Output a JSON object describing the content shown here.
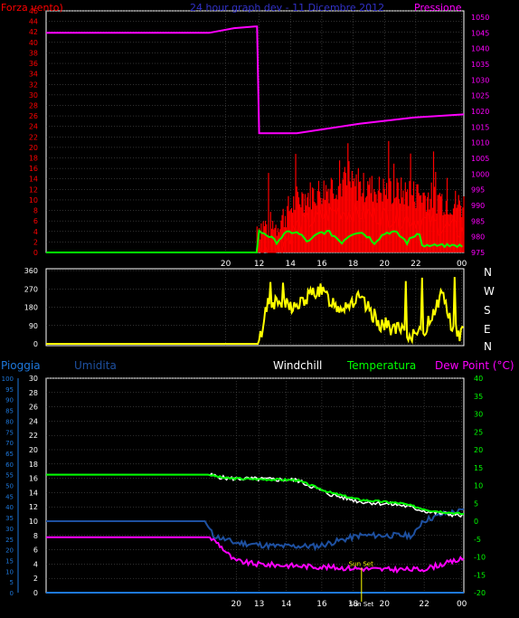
{
  "colors": {
    "wind": "#ff0000",
    "pressure": "#ff00ff",
    "temperature": "#00ff00",
    "dewpoint": "#ff00ff",
    "humidity": "#1e50a0",
    "windchill": "#ffffff",
    "rain": "#1e78dc",
    "direction": "#ffff00",
    "title": "#3232c8",
    "grid": "#606060",
    "axis": "#ffffff"
  },
  "panel1": {
    "wind_label": "Forza vento)",
    "title": "24 hour graph dev - 11 Dicembre 2012",
    "pressure_label": "Pressione",
    "left_ticks": [
      "46",
      "44",
      "42",
      "40",
      "38",
      "36",
      "34",
      "32",
      "30",
      "28",
      "26",
      "24",
      "22",
      "20",
      "18",
      "16",
      "14",
      "12",
      "10",
      "8",
      "6",
      "4",
      "2",
      "0"
    ],
    "right_ticks": [
      "1050",
      "1045",
      "1040",
      "1035",
      "1030",
      "1025",
      "1020",
      "1015",
      "1010",
      "1005",
      "1000",
      "995",
      "990",
      "985",
      "980",
      "975"
    ],
    "x_ticks": [
      "20",
      "12",
      "14",
      "16",
      "18",
      "20",
      "22",
      "00"
    ]
  },
  "panel2": {
    "left_ticks": [
      "360",
      "270",
      "180",
      "90",
      "0"
    ],
    "compass": [
      "N",
      "W",
      "S",
      "E",
      "N"
    ],
    "x_ticks": [
      "20",
      "12",
      "14",
      "16",
      "18",
      "20",
      "22",
      "00"
    ]
  },
  "panel3": {
    "labels": {
      "rain": "Pioggia",
      "humidity": "Umidita",
      "windchill": "Windchill",
      "temperature": "Temperatura",
      "dewpoint": "Dew Point (°C)"
    },
    "rain_ticks": [
      "100",
      "95",
      "90",
      "85",
      "80",
      "75",
      "70",
      "65",
      "60",
      "55",
      "50",
      "45",
      "40",
      "35",
      "30",
      "25",
      "20",
      "15",
      "10",
      "5",
      "0"
    ],
    "hum_ticks": [
      "30",
      "28",
      "26",
      "24",
      "22",
      "20",
      "18",
      "16",
      "14",
      "12",
      "10",
      "8",
      "6",
      "4",
      "2",
      "0"
    ],
    "temp_ticks": [
      "40",
      "35",
      "30",
      "25",
      "20",
      "15",
      "10",
      "5",
      "0",
      "-5",
      "-10",
      "-15",
      "-20"
    ],
    "x_ticks": [
      "20",
      "13",
      "14",
      "16",
      "18",
      "20",
      "22",
      "00"
    ],
    "sunset_label": "Sun Set",
    "sunset_tick": "Sun Set"
  },
  "chart_data": [
    {
      "type": "line",
      "title": "24 hour graph dev - 11 Dicembre 2012",
      "series": [
        {
          "name": "Forza vento)",
          "axis": "left",
          "points": [
            [
              0,
              0
            ],
            [
              0.54,
              0
            ],
            [
              0.55,
              0
            ],
            [
              0.6,
              5
            ],
            [
              0.7,
              8
            ],
            [
              0.8,
              7
            ],
            [
              0.9,
              6
            ],
            [
              1,
              4
            ]
          ]
        },
        {
          "name": "Pressione",
          "axis": "right",
          "points": [
            [
              0,
              1045
            ],
            [
              0.39,
              1045
            ],
            [
              0.45,
              1046.5
            ],
            [
              0.5,
              1047
            ],
            [
              0.505,
              1047
            ],
            [
              0.51,
              1013
            ],
            [
              0.6,
              1013
            ],
            [
              0.75,
              1016
            ],
            [
              0.88,
              1018
            ],
            [
              1,
              1019
            ]
          ]
        }
      ],
      "gust_band": {
        "start": 0.505,
        "end": 1.0
      }
    },
    {
      "type": "line",
      "series": [
        {
          "name": "wind direction",
          "points": [
            [
              0,
              0
            ],
            [
              0.51,
              0
            ],
            [
              0.53,
              210
            ],
            [
              0.6,
              180
            ],
            [
              0.65,
              270
            ],
            [
              0.7,
              180
            ],
            [
              0.75,
              220
            ],
            [
              0.8,
              100
            ],
            [
              0.85,
              60
            ],
            [
              0.9,
              40
            ],
            [
              0.95,
              260
            ],
            [
              0.97,
              80
            ],
            [
              1,
              40
            ]
          ]
        }
      ]
    },
    {
      "type": "line",
      "series": [
        {
          "name": "Temperatura",
          "axis": "right",
          "points": [
            [
              0,
              13
            ],
            [
              0.39,
              13
            ],
            [
              0.43,
              12
            ],
            [
              0.6,
              11.5
            ],
            [
              0.68,
              8
            ],
            [
              0.75,
              6
            ],
            [
              0.85,
              5
            ],
            [
              0.92,
              3
            ],
            [
              1,
              2
            ]
          ]
        },
        {
          "name": "Windchill",
          "axis": "right",
          "points": [
            [
              0,
              13
            ],
            [
              0.39,
              13
            ],
            [
              0.43,
              12
            ],
            [
              0.6,
              11.5
            ],
            [
              0.68,
              7.5
            ],
            [
              0.75,
              5.5
            ],
            [
              0.85,
              4.5
            ],
            [
              0.92,
              2.5
            ],
            [
              1,
              1.5
            ]
          ]
        },
        {
          "name": "Dew Point (°C)",
          "axis": "right",
          "points": [
            [
              0,
              -4.5
            ],
            [
              0.39,
              -4.5
            ],
            [
              0.41,
              -6
            ],
            [
              0.45,
              -11
            ],
            [
              0.5,
              -12
            ],
            [
              0.6,
              -12.5
            ],
            [
              0.7,
              -13
            ],
            [
              0.8,
              -13.5
            ],
            [
              0.9,
              -13.5
            ],
            [
              0.95,
              -12
            ],
            [
              1,
              -10.5
            ]
          ]
        },
        {
          "name": "Umidita",
          "axis": "left",
          "points": [
            [
              0,
              10
            ],
            [
              0.38,
              10
            ],
            [
              0.4,
              8
            ],
            [
              0.45,
              7
            ],
            [
              0.55,
              6.5
            ],
            [
              0.65,
              6.5
            ],
            [
              0.75,
              8
            ],
            [
              0.82,
              8
            ],
            [
              0.88,
              8
            ],
            [
              0.9,
              10
            ],
            [
              0.95,
              11
            ],
            [
              1,
              11.5
            ]
          ]
        },
        {
          "name": "Pioggia",
          "axis": "rain",
          "points": [
            [
              0,
              0
            ],
            [
              1,
              0
            ]
          ]
        }
      ],
      "sunset_x": 0.755
    }
  ]
}
